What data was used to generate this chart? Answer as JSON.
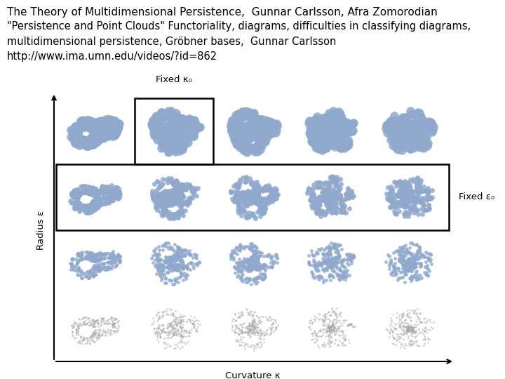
{
  "title_line1": "The Theory of Multidimensional Persistence,  Gunnar Carlsson, Afra Zomorodian",
  "title_line2": "\"Persistence and Point Clouds\" Functoriality, diagrams, difficulties in classifying diagrams,\nmultidimensional persistence, Gröbner bases,  Gunnar Carlsson\nhttp://www.ima.umn.edu/videos/?id=862",
  "bg_color": "#ffffff",
  "text_color": "#000000",
  "grid_rows": 4,
  "grid_cols": 5,
  "label_fixed_kappa0": "Fixed κ₀",
  "label_fixed_epsilon0": "Fixed ε₀",
  "label_radius": "Radius ε",
  "label_curvature": "Curvature κ",
  "title1_fontsize": 11,
  "title2_fontsize": 10.5,
  "axis_label_fontsize": 9.5,
  "blue_fill": "#8fa8cc",
  "grey_fill": "#aaaaaa"
}
